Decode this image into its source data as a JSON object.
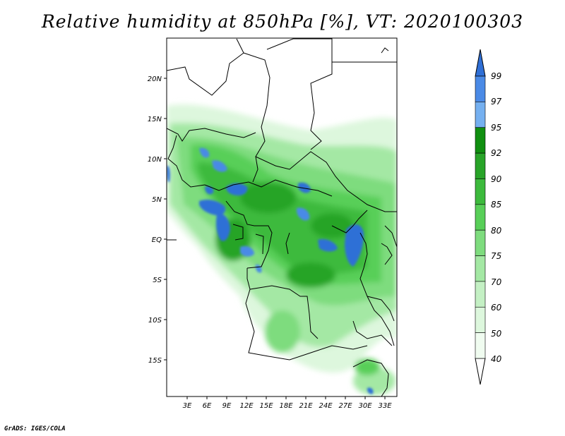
{
  "title": "Relative humidity at 850hPa [%], VT: 2020100303",
  "credit": "GrADS: IGES/COLA",
  "map": {
    "lat_labels": [
      "20N",
      "15N",
      "10N",
      "5N",
      "EQ",
      "5S",
      "10S",
      "15S"
    ],
    "lon_labels": [
      "3E",
      "6E",
      "9E",
      "12E",
      "15E",
      "18E",
      "21E",
      "24E",
      "27E",
      "30E",
      "33E"
    ]
  },
  "colorbar": {
    "labels": [
      "99",
      "97",
      "95",
      "92",
      "90",
      "85",
      "80",
      "75",
      "70",
      "60",
      "50",
      "40"
    ],
    "colors": [
      "#2f6fd6",
      "#4a8ae6",
      "#75b0f0",
      "#108f10",
      "#28a428",
      "#3cba3c",
      "#58cf58",
      "#7edc7e",
      "#a4e8a4",
      "#c4f0c4",
      "#ddf7dd",
      "#f0fcf0"
    ],
    "arrow_top_color": "#2f6fd6",
    "arrow_bottom_color": "#ffffff"
  }
}
